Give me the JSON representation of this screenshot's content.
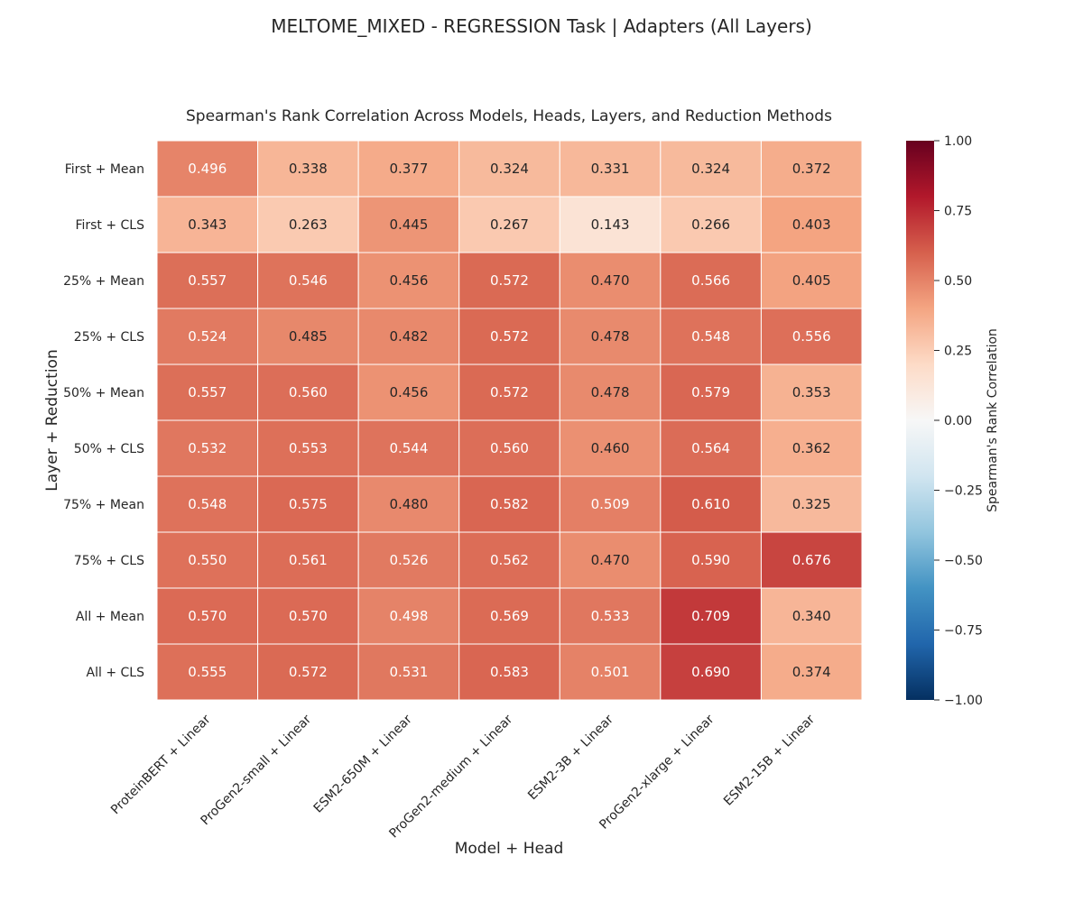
{
  "figure": {
    "suptitle": "MELTOME_MIXED - REGRESSION Task | Adapters (All Layers)"
  },
  "chart_data": {
    "type": "heatmap",
    "title": "Spearman's Rank Correlation Across Models, Heads, Layers, and Reduction Methods",
    "xlabel": "Model + Head",
    "ylabel": "Layer + Reduction",
    "x_categories": [
      "ProteinBERT + Linear",
      "ProGen2-small + Linear",
      "ESM2-650M + Linear",
      "ProGen2-medium + Linear",
      "ESM2-3B + Linear",
      "ProGen2-xlarge + Linear",
      "ESM2-15B + Linear"
    ],
    "y_categories": [
      "First + Mean",
      "First + CLS",
      "25% + Mean",
      "25% + CLS",
      "50% + Mean",
      "50% + CLS",
      "75% + Mean",
      "75% + CLS",
      "All + Mean",
      "All + CLS"
    ],
    "values": [
      [
        0.496,
        0.338,
        0.377,
        0.324,
        0.331,
        0.324,
        0.372
      ],
      [
        0.343,
        0.263,
        0.445,
        0.267,
        0.143,
        0.266,
        0.403
      ],
      [
        0.557,
        0.546,
        0.456,
        0.572,
        0.47,
        0.566,
        0.405
      ],
      [
        0.524,
        0.485,
        0.482,
        0.572,
        0.478,
        0.548,
        0.556
      ],
      [
        0.557,
        0.56,
        0.456,
        0.572,
        0.478,
        0.579,
        0.353
      ],
      [
        0.532,
        0.553,
        0.544,
        0.56,
        0.46,
        0.564,
        0.362
      ],
      [
        0.548,
        0.575,
        0.48,
        0.582,
        0.509,
        0.61,
        0.325
      ],
      [
        0.55,
        0.561,
        0.526,
        0.562,
        0.47,
        0.59,
        0.676
      ],
      [
        0.57,
        0.57,
        0.498,
        0.569,
        0.533,
        0.709,
        0.34
      ],
      [
        0.555,
        0.572,
        0.531,
        0.583,
        0.501,
        0.69,
        0.374
      ]
    ],
    "value_format": "3 decimals",
    "colormap": "RdBu_r",
    "vmin": -1.0,
    "vmax": 1.0,
    "colorbar": {
      "label": "Spearman's Rank Correlation",
      "ticks": [
        1.0,
        0.75,
        0.5,
        0.25,
        0.0,
        -0.25,
        -0.5,
        -0.75,
        -1.0
      ],
      "tick_labels": [
        "1.00",
        "0.75",
        "0.50",
        "0.25",
        "0.00",
        "−0.25",
        "−0.50",
        "−0.75",
        "−1.00"
      ],
      "placement": "right"
    },
    "grid": false
  }
}
